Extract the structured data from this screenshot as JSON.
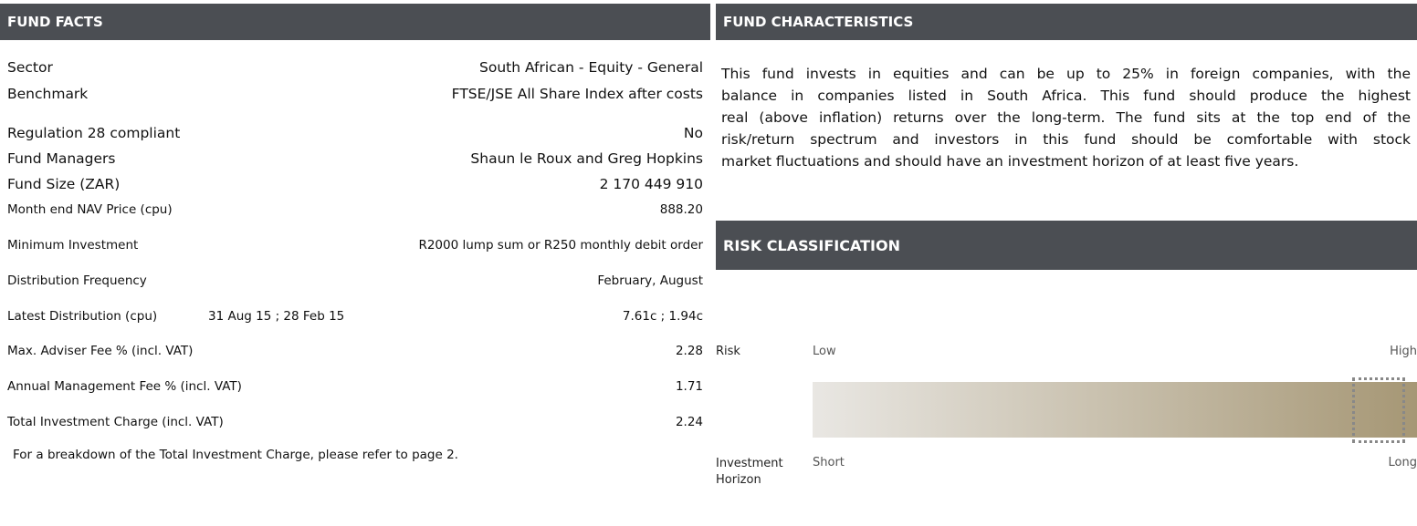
{
  "fund_facts": {
    "title": "FUND FACTS",
    "rows": [
      {
        "label": "Sector",
        "value": "South African - Equity - General"
      },
      {
        "label": "Benchmark",
        "value": "FTSE/JSE All Share Index after costs"
      },
      {
        "label": "Regulation 28 compliant",
        "value": "No"
      },
      {
        "label": "Fund Managers",
        "value": "Shaun le Roux and Greg Hopkins"
      },
      {
        "label": "Fund Size (ZAR)",
        "value": "2 170 449 910"
      },
      {
        "label": "Month end NAV Price (cpu)",
        "value": "888.20"
      },
      {
        "label": "Minimum Investment",
        "value": "R2000 lump sum or R250 monthly debit order"
      },
      {
        "label": "Distribution Frequency",
        "value": "February, August"
      },
      {
        "label": "Latest Distribution (cpu)",
        "note": "31 Aug 15 ; 28 Feb 15",
        "value": "7.61c ; 1.94c"
      },
      {
        "label": "Max. Adviser Fee % (incl. VAT)",
        "value": "2.28"
      },
      {
        "label": "Annual Management Fee % (incl. VAT)",
        "value": "1.71"
      },
      {
        "label": "Total Investment Charge (incl. VAT)",
        "value": "2.24"
      }
    ],
    "footer": "For a breakdown of the Total Investment Charge, please refer to page 2."
  },
  "fund_characteristics": {
    "title": "FUND CHARACTERISTICS",
    "lines": [
      "This fund invests in equities and can be up to 25% in foreign companies, with the",
      "balance in companies listed in South Africa. This fund should produce the highest",
      "real (above inflation) returns over the long-term. The fund sits at the top end of the",
      "risk/return spectrum and investors in this fund should be comfortable with stock",
      "market fluctuations and should have an investment horizon of at least five years."
    ]
  },
  "risk_classification": {
    "title": "RISK CLASSIFICATION",
    "risk_label": "Risk",
    "risk_low": "Low",
    "risk_high": "High",
    "horizon_label": "Investment Horizon",
    "horizon_short": "Short",
    "horizon_long": "Long"
  }
}
